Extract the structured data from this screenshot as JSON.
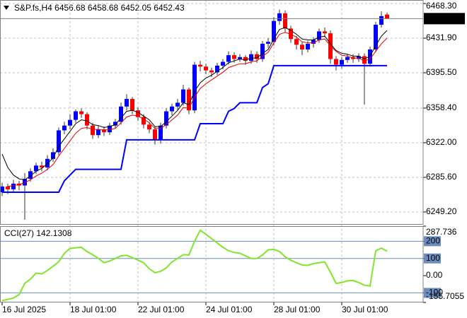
{
  "chart_data": [
    {
      "type": "candlestick",
      "title": "S&P.fs,H4  6456.68 6458.68 6452.05 6452.43",
      "open": [
        6270,
        6276,
        6273,
        6279,
        6277,
        6284,
        6292,
        6298,
        6296,
        6305,
        6312,
        6335,
        6340,
        6346,
        6355,
        6352,
        6340,
        6330,
        6336,
        6333,
        6340,
        6344,
        6360,
        6368,
        6356,
        6349,
        6341,
        6336,
        6325,
        6340,
        6355,
        6360,
        6364,
        6378,
        6356,
        6404,
        6402,
        6398,
        6396,
        6403,
        6407,
        6414,
        6410,
        6412,
        6408,
        6415,
        6410,
        6426,
        6428,
        6450,
        6458,
        6442,
        6431,
        6425,
        6420,
        6426,
        6430,
        6439,
        6437,
        6410,
        6404,
        6409,
        6412,
        6410,
        6413,
        6405,
        6420,
        6446,
        6456.68
      ],
      "high": [
        6280,
        6279,
        6283,
        6282,
        6290,
        6295,
        6301,
        6302,
        6309,
        6316,
        6338,
        6344,
        6352,
        6357,
        6358,
        6354,
        6343,
        6340,
        6339,
        6343,
        6347,
        6364,
        6373,
        6370,
        6359,
        6352,
        6344,
        6339,
        6343,
        6358,
        6363,
        6368,
        6383,
        6380,
        6407,
        6408,
        6405,
        6401,
        6406,
        6410,
        6418,
        6417,
        6415,
        6414,
        6419,
        6418,
        6429,
        6432,
        6454,
        6462,
        6461,
        6445,
        6434,
        6428,
        6429,
        6433,
        6442,
        6443,
        6440,
        6413,
        6412,
        6415,
        6415,
        6416,
        6416,
        6423,
        6449,
        6460,
        6458.68
      ],
      "low": [
        6266,
        6268,
        6270,
        6272,
        6241,
        6281,
        6289,
        6292,
        6293,
        6302,
        6309,
        6331,
        6336,
        6343,
        6348,
        6336,
        6326,
        6327,
        6329,
        6330,
        6337,
        6341,
        6356,
        6352,
        6345,
        6337,
        6332,
        6320,
        6321,
        6337,
        6351,
        6356,
        6361,
        6352,
        6353,
        6397,
        6394,
        6391,
        6393,
        6399,
        6404,
        6406,
        6407,
        6404,
        6405,
        6406,
        6407,
        6422,
        6424,
        6446,
        6438,
        6427,
        6420,
        6414,
        6417,
        6422,
        6427,
        6433,
        6405,
        6398,
        6400,
        6406,
        6406,
        6407,
        6362,
        6402,
        6417,
        6443,
        6452.05
      ],
      "close": [
        6276,
        6273,
        6279,
        6277,
        6284,
        6292,
        6298,
        6296,
        6305,
        6312,
        6335,
        6340,
        6346,
        6355,
        6352,
        6340,
        6330,
        6336,
        6333,
        6340,
        6344,
        6360,
        6368,
        6356,
        6349,
        6341,
        6336,
        6325,
        6340,
        6355,
        6360,
        6364,
        6378,
        6356,
        6404,
        6402,
        6398,
        6396,
        6403,
        6407,
        6414,
        6410,
        6412,
        6408,
        6415,
        6410,
        6426,
        6428,
        6450,
        6458,
        6442,
        6431,
        6425,
        6420,
        6426,
        6430,
        6439,
        6437,
        6410,
        6404,
        6409,
        6412,
        6410,
        6413,
        6405,
        6420,
        6446,
        6455,
        6452.43
      ],
      "up_color": "#0000ff",
      "down_color": "#ff0000",
      "series": [
        {
          "color": "#000000",
          "values": [
            6310,
            6296,
            6288,
            6284,
            6283,
            6287,
            6292,
            6295,
            6300,
            6306,
            6318,
            6326,
            6334,
            6342,
            6346,
            6345,
            6341,
            6340,
            6338,
            6339,
            6341,
            6348,
            6355,
            6356,
            6354,
            6350,
            6346,
            6339,
            6339,
            6344,
            6350,
            6356,
            6364,
            6362,
            6376,
            6385,
            6390,
            6393,
            6397,
            6401,
            6406,
            6408,
            6410,
            6409,
            6411,
            6411,
            6416,
            6420,
            6431,
            6441,
            6443,
            6440,
            6436,
            6431,
            6430,
            6430,
            6433,
            6434,
            6426,
            6419,
            6416,
            6415,
            6413,
            6413,
            6410,
            6413,
            6424,
            6434,
            6440
          ]
        },
        {
          "color": "#e00000",
          "values": [
            null,
            6276,
            6277,
            6278,
            6280,
            6283,
            6287,
            6290,
            6294,
            6299,
            6308,
            6316,
            6324,
            6332,
            6337,
            6338,
            6336,
            6336,
            6335,
            6336,
            6337,
            6343,
            6349,
            6351,
            6350,
            6347,
            6343,
            6337,
            6337,
            6341,
            6346,
            6351,
            6359,
            6358,
            6370,
            6379,
            6384,
            6388,
            6392,
            6396,
            6401,
            6403,
            6405,
            6405,
            6407,
            6408,
            6413,
            6417,
            6427,
            6436,
            6438,
            6436,
            6433,
            6428,
            6427,
            6427,
            6430,
            6431,
            6424,
            6418,
            6414,
            6413,
            6411,
            6411,
            6408,
            6410,
            6418,
            6426,
            6432
          ]
        },
        {
          "color": "#0000ff",
          "values": [
            6270,
            6270,
            6270,
            6270,
            6270,
            6270,
            6270,
            6270,
            6270,
            6270,
            6270,
            6282,
            6288,
            6294,
            6294,
            6294,
            6294,
            6294,
            6294,
            6294,
            6294,
            6294,
            6325,
            6325,
            6325,
            6325,
            6325,
            6325,
            6325,
            6325,
            6325,
            6325,
            6325,
            6325,
            6325,
            6342,
            6342,
            6342,
            6342,
            6342,
            6355,
            6358,
            6364,
            6364,
            6364,
            6364,
            6380,
            6384,
            6403,
            6403,
            6403,
            6403,
            6403,
            6403,
            6403,
            6403,
            6403,
            6403,
            6403,
            6403,
            6403,
            6403,
            6403,
            6403,
            6403,
            6403,
            6403,
            6403,
            6403
          ]
        }
      ],
      "last_price": 6452.43,
      "ylim": [
        6235.8,
        6472.0
      ],
      "yticks": [
        {
          "value": 6468.3,
          "label": "6468.30"
        },
        {
          "value": 6431.9,
          "label": "6431.90"
        },
        {
          "value": 6395.5,
          "label": "6395.50"
        },
        {
          "value": 6358.4,
          "label": "6358.40"
        },
        {
          "value": 6322,
          "label": "6322.00"
        },
        {
          "value": 6285.6,
          "label": "6285.60"
        },
        {
          "value": 6249.2,
          "label": "6249.20"
        }
      ],
      "xticks": [
        {
          "value": 0,
          "label": "16 Jul 2025"
        },
        {
          "value": 12,
          "label": "18 Jul 01:00"
        },
        {
          "value": 24,
          "label": "22 Jul 01:00"
        },
        {
          "value": 36,
          "label": "24 Jul 01:00"
        },
        {
          "value": 48,
          "label": "28 Jul 01:00"
        },
        {
          "value": 60,
          "label": "30 Jul 01:00"
        }
      ],
      "grid": true
    },
    {
      "type": "line",
      "title": "CCI(27) 142.1308",
      "color": "#7fe62b",
      "values": [
        -145,
        -138,
        -130,
        -110,
        -45,
        -20,
        15,
        10,
        30,
        55,
        80,
        130,
        158,
        162,
        165,
        140,
        122,
        100,
        75,
        85,
        100,
        115,
        118,
        105,
        90,
        75,
        40,
        17,
        25,
        45,
        80,
        100,
        122,
        120,
        200,
        264,
        240,
        215,
        190,
        165,
        145,
        135,
        130,
        115,
        100,
        100,
        120,
        150,
        153,
        140,
        110,
        90,
        75,
        62,
        60,
        70,
        75,
        80,
        20,
        -45,
        -40,
        -30,
        -28,
        -40,
        -55,
        -60,
        145,
        160,
        142.1308
      ],
      "ylim": [
        -155.7055,
        287.736
      ],
      "yticks": [
        287.736,
        200,
        100,
        {
          "value": 0,
          "label": "0.00"
        },
        -100,
        -155.7055
      ],
      "levels": [
        200,
        100,
        -100
      ],
      "level_color": "#6a8cbf"
    }
  ]
}
